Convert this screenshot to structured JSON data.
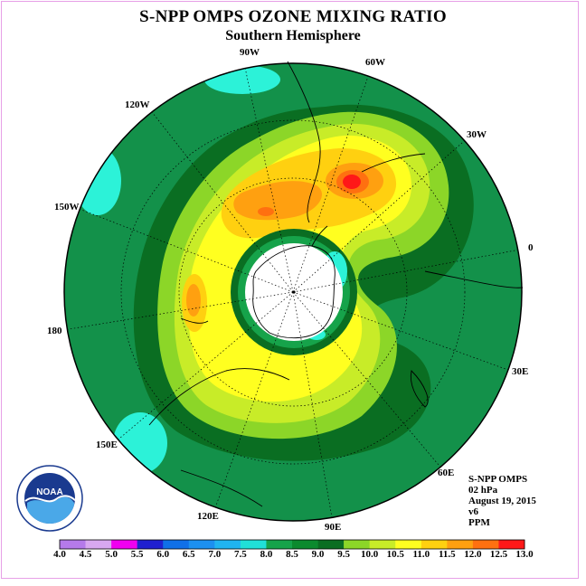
{
  "title": "S-NPP OMPS OZONE MIXING RATIO",
  "subtitle": "Southern Hemisphere",
  "longitude_labels": {
    "w90": "90W",
    "w60": "60W",
    "w30": "30W",
    "lon0": "0",
    "e30": "30E",
    "e60": "60E",
    "e90": "90E",
    "e120": "120E",
    "e150": "150E",
    "lon180": "180",
    "w150": "150W",
    "w120": "120W"
  },
  "info": {
    "instrument": "S-NPP OMPS",
    "level": "02 hPa",
    "date": "August 19, 2015",
    "version": "v6",
    "units": "PPM"
  },
  "logo": {
    "text": "NOAA",
    "agency_ring": "NATIONAL OCEANIC AND ATMOSPHERIC ADMINISTRATION · U.S. DEPARTMENT OF COMMERCE"
  },
  "colorbar": {
    "labels": [
      "4.0",
      "4.5",
      "5.0",
      "5.5",
      "6.0",
      "6.5",
      "7.0",
      "7.5",
      "8.0",
      "8.5",
      "9.0",
      "9.5",
      "10.0",
      "10.5",
      "11.0",
      "11.5",
      "12.0",
      "12.5",
      "13.0"
    ],
    "colors": [
      "#b57aea",
      "#d8a8f0",
      "#f000f0",
      "#2020d0",
      "#1070e8",
      "#1c90f0",
      "#20b4f0",
      "#20e0d8",
      "#16a34a",
      "#0c8a2e",
      "#0a6e22",
      "#8cd628",
      "#c8ec28",
      "#ffff20",
      "#ffd010",
      "#ffa010",
      "#ff7010",
      "#ff1818",
      "#8b5a2b"
    ]
  },
  "colors": {
    "ocean_base": "#13914a",
    "ring_dark": "#0a6e22",
    "green_mid": "#16a34a",
    "cyan": "#2cf2d8",
    "light_green": "#8cd628",
    "yellow_green": "#c8ec28",
    "yellow": "#ffff20",
    "gold": "#ffd010",
    "orange": "#ffa010",
    "dark_orange": "#ff7010",
    "red": "#ff1818",
    "polar_void": "#ffffff"
  }
}
